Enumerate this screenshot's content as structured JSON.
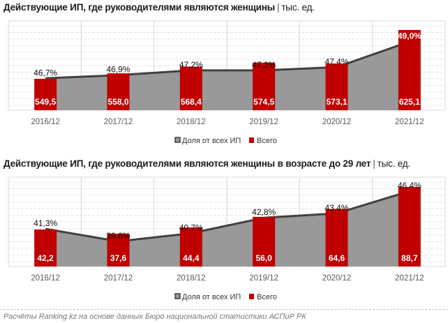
{
  "chart_data": [
    {
      "type": "bar+area",
      "title": "Действующие ИП, где руководителями являются женщины",
      "unit": "тыс. ед.",
      "categories": [
        "2016/12",
        "2017/12",
        "2018/12",
        "2019/12",
        "2020/12",
        "2021/12"
      ],
      "series": [
        {
          "name": "Доля от всех ИП",
          "kind": "area",
          "values": [
            46.7,
            46.9,
            47.2,
            47.2,
            47.4,
            49.0
          ],
          "labels": [
            "46,7%",
            "46,9%",
            "47,2%",
            "47,2%",
            "47,4%",
            "49,0%"
          ],
          "ylim": [
            44.7,
            50.3
          ]
        },
        {
          "name": "Всего",
          "kind": "bar",
          "values": [
            549.5,
            558.0,
            568.4,
            574.5,
            573.1,
            625.1
          ],
          "labels": [
            "549,5",
            "558,0",
            "568,4",
            "574,5",
            "573,1",
            "625,1"
          ],
          "ylim": [
            500.9,
            639.1
          ]
        }
      ],
      "legend": [
        "Доля от всех ИП",
        "Всего"
      ],
      "legend_position": "bottom",
      "grid": true
    },
    {
      "type": "bar+area",
      "title": "Действующие ИП, где руководителями являются женщины в возрасте до 29 лет",
      "unit": "тыс. ед.",
      "categories": [
        "2016/12",
        "2017/12",
        "2018/12",
        "2019/12",
        "2020/12",
        "2021/12"
      ],
      "series": [
        {
          "name": "Доля от всех ИП",
          "kind": "area",
          "values": [
            41.3,
            39.6,
            40.7,
            42.8,
            43.4,
            46.4
          ],
          "labels": [
            "41,3%",
            "39,6%",
            "40,7%",
            "42,8%",
            "43,4%",
            "46,4%"
          ],
          "ylim": [
            36.2,
            48.3
          ]
        },
        {
          "name": "Всего",
          "kind": "bar",
          "values": [
            42.2,
            37.6,
            44.4,
            56.0,
            64.6,
            88.7
          ],
          "labels": [
            "42,2",
            "37,6",
            "44,4",
            "56,0",
            "64,6",
            "88,7"
          ],
          "ylim": [
            1.7,
            99.4
          ]
        }
      ],
      "legend": [
        "Доля от всех ИП",
        "Всего"
      ],
      "legend_position": "bottom",
      "grid": true
    }
  ],
  "colors": {
    "bar": "#c00000",
    "area": "#999999",
    "line": "#404040"
  },
  "footer": "Расчёты Ranking.kz на основе данных Бюро национальной статистики АСПиР РК"
}
